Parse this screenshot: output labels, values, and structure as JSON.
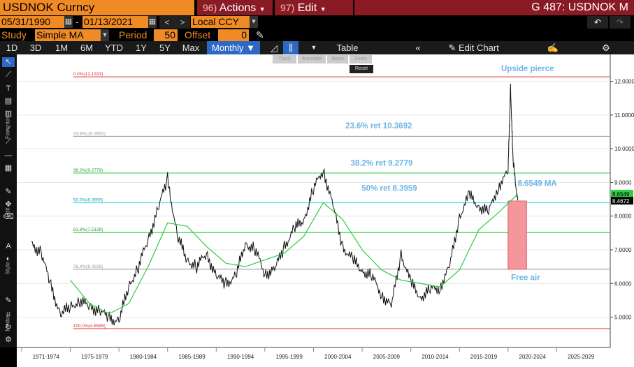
{
  "header": {
    "ticker": "USDNOK Curncy",
    "actions_num": "96)",
    "actions_label": "Actions",
    "edit_num": "97)",
    "edit_label": "Edit",
    "security_id": "G 487: USDNOK M"
  },
  "controls": {
    "start_date": "05/31/1990",
    "end_date": "01/13/2021",
    "currency": "Local CCY",
    "study_label": "Study",
    "study_value": "Simple MA",
    "period_label": "Period",
    "period_value": "50",
    "offset_label": "Offset",
    "offset_value": "0"
  },
  "tabs": [
    "1D",
    "3D",
    "1M",
    "6M",
    "YTD",
    "1Y",
    "5Y",
    "Max"
  ],
  "frequency": "Monthly",
  "toolbar": {
    "table_label": "Table",
    "edit_chart_label": "Edit Chart"
  },
  "side_labels": [
    "Favorites",
    "Edit",
    "Style",
    "Modes"
  ],
  "popup": {
    "track": "Track",
    "annotate": "Annotate",
    "news": "News",
    "zoom": "Zoom",
    "reset": "Reset"
  },
  "colors": {
    "accent_orange": "#f08a24",
    "menu_red": "#8a1a24",
    "price_line": "#ffffff",
    "ma_line": "#2ecc40",
    "annotation_blue": "#6cb4e8",
    "free_air_box": "#f4969a",
    "fib_0": "#e03030",
    "fib_236": "#999999",
    "fib_382": "#2ecc40",
    "fib_50": "#3fd9e6",
    "fib_618": "#2ecc40",
    "fib_764": "#999999",
    "fib_100": "#e03030"
  },
  "chart_data": {
    "type": "line",
    "series": [
      {
        "x": [
          1971,
          1972,
          1973,
          1974,
          1975,
          1976,
          1977,
          1978,
          1979,
          1980,
          1981,
          1982,
          1983,
          1984,
          1985,
          1986,
          1987,
          1988,
          1989,
          1990,
          1991,
          1992,
          1993,
          1994,
          1995,
          1996,
          1997,
          1998,
          1999,
          2000,
          2001,
          2002,
          2003,
          2004,
          2005,
          2006,
          2007,
          2008,
          2009,
          2010,
          2011,
          2012,
          2013,
          2014,
          2015,
          2016,
          2017,
          2018,
          2019,
          2020,
          2020.25,
          2020.5,
          2021
        ],
        "y": [
          7.15,
          6.95,
          5.9,
          5.1,
          5.3,
          5.5,
          5.3,
          5.2,
          4.95,
          4.9,
          5.9,
          6.5,
          7.3,
          8.2,
          9.1,
          7.4,
          6.7,
          6.5,
          6.9,
          6.2,
          6.0,
          6.2,
          7.2,
          7.0,
          6.3,
          6.4,
          7.1,
          7.6,
          7.9,
          8.8,
          9.4,
          8.3,
          7.1,
          6.7,
          6.4,
          6.2,
          5.7,
          5.3,
          6.9,
          6.0,
          5.6,
          5.8,
          5.9,
          6.5,
          8.0,
          8.6,
          8.3,
          8.1,
          8.9,
          9.3,
          11.9,
          9.6,
          8.4672
        ]
      },
      {
        "name": "Simple MA",
        "x": [
          1975,
          1977,
          1979,
          1981,
          1983,
          1985,
          1987,
          1989,
          1991,
          1993,
          1995,
          1997,
          1999,
          2001,
          2003,
          2005,
          2007,
          2009,
          2011,
          2013,
          2015,
          2017,
          2019,
          2021
        ],
        "y": [
          6.1,
          5.4,
          5.1,
          5.4,
          6.5,
          7.8,
          7.7,
          7.1,
          6.6,
          6.5,
          6.7,
          6.9,
          7.4,
          8.4,
          7.9,
          7.0,
          6.4,
          6.1,
          6.0,
          5.9,
          6.4,
          7.6,
          8.1,
          8.6549
        ]
      }
    ],
    "fib_levels": [
      {
        "label": "0.0%(12.1333)",
        "value": 12.1333
      },
      {
        "label": "23.6%(10.3692)",
        "value": 10.3692
      },
      {
        "label": "38.2%(9.2779)",
        "value": 9.2779
      },
      {
        "label": "50.0%(8.3959)",
        "value": 8.3959
      },
      {
        "label": "61.8%(7.5139)",
        "value": 7.5139
      },
      {
        "label": "76.4%(6.4226)",
        "value": 6.4226
      },
      {
        "label": "100.0%(4.6585)",
        "value": 4.6585
      }
    ],
    "annotations": [
      {
        "text": "Upside pierce",
        "x": 2022,
        "y": 12.3
      },
      {
        "text": "23.6% ret 10.3692",
        "x": 2006.7,
        "y": 10.6
      },
      {
        "text": "38.2% ret 9.2779",
        "x": 2007,
        "y": 9.5
      },
      {
        "text": "50% ret 8.3959",
        "x": 2007.8,
        "y": 8.75
      },
      {
        "text": "8.6549 MA",
        "x": 2023,
        "y": 8.9
      },
      {
        "text": "Free air",
        "x": 2021.8,
        "y": 6.1
      }
    ],
    "free_air_box": {
      "x0": 2020.0,
      "x1": 2021.9,
      "y0": 6.42,
      "y1": 8.45
    },
    "last_price_label": "8.4672",
    "ma_label": "8.6549",
    "xlim": [
      1969.5,
      2030.5
    ],
    "ylim": [
      4.1,
      12.8
    ],
    "y_ticks": [
      5.0,
      6.0,
      7.0,
      8.0,
      9.0,
      10.0,
      11.0,
      12.0
    ],
    "y_tick_labels": [
      "5.0000",
      "6.0000",
      "7.0000",
      "8.0000",
      "9.0000",
      "10.0000",
      "11.0000",
      "12.0000"
    ],
    "x_ticks": [
      1972.5,
      1977.5,
      1982.5,
      1987.5,
      1992.5,
      1997.5,
      2002.5,
      2007.5,
      2012.5,
      2017.5,
      2022.5,
      2027.5
    ],
    "x_tick_labels": [
      "1971-1974",
      "1975-1979",
      "1980-1984",
      "1985-1989",
      "1990-1994",
      "1995-1999",
      "2000-2004",
      "2005-2009",
      "2010-2014",
      "2015-2019",
      "2020-2024",
      "2025-2029"
    ],
    "grid": true,
    "legend": "none"
  }
}
